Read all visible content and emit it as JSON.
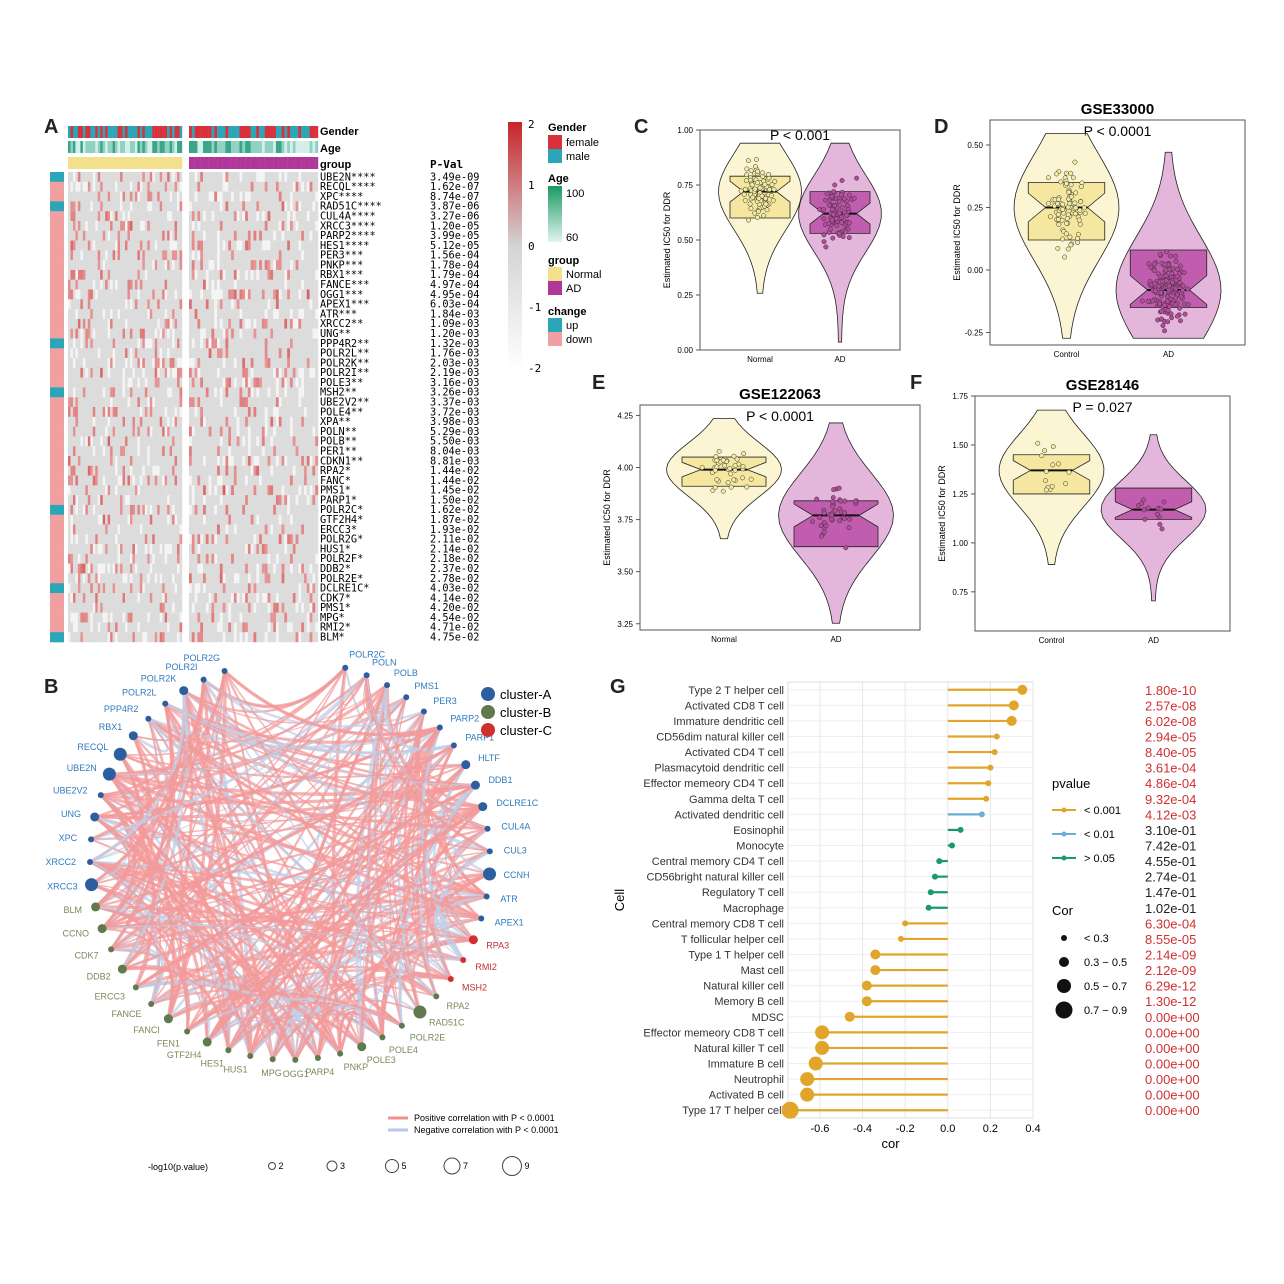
{
  "panels": {
    "A": "A",
    "B": "B",
    "C": "C",
    "D": "D",
    "E": "E",
    "F": "F",
    "G": "G"
  },
  "colors": {
    "normal": "#f2e08a",
    "ad": "#b0379a",
    "up": "#2aa6b8",
    "down": "#f0a0a0",
    "female": "#d9303a",
    "male": "#2aa6b8",
    "clusterA": "#2d5fa0",
    "clusterB": "#5f7a4e",
    "clusterC": "#d03030",
    "pval_lt001": "#e0a52a",
    "pval_lt01": "#6baed6",
    "pval_gt05": "#1a9870",
    "sig_text": "#d03030"
  },
  "heatmap": {
    "annotations": [
      "Gender",
      "Age",
      "group"
    ],
    "pval_header": "P-Val",
    "genes": [
      "UBE2N****",
      "RECQL****",
      "XPC****",
      "RAD51C****",
      "CUL4A****",
      "XRCC3****",
      "PARP2****",
      "HES1****",
      "PER3***",
      "PNKP***",
      "RBX1***",
      "FANCE***",
      "OGG1***",
      "APEX1***",
      "ATR***",
      "XRCC2**",
      "UNG**",
      "PPP4R2**",
      "POLR2L**",
      "POLR2K**",
      "POLR2I**",
      "POLE3**",
      "MSH2**",
      "UBE2V2**",
      "POLE4**",
      "XPA**",
      "POLN**",
      "POLB**",
      "PER1**",
      "CDKN1**",
      "RPA2*",
      "FANC*",
      "PMS1*",
      "PARP1*",
      "POLR2C*",
      "GTF2H4*",
      "ERCC3*",
      "POLR2G*",
      "HUS1*",
      "POLR2F*",
      "DDB2*",
      "POLR2E*",
      "DCLRE1C*",
      "CDK7*",
      "PMS1*",
      "MPG*",
      "RMI2*",
      "BLM*"
    ],
    "pvals": [
      "3.49e-09",
      "1.62e-07",
      "8.74e-07",
      "3.87e-06",
      "3.27e-06",
      "1.20e-05",
      "3.99e-05",
      "5.12e-05",
      "1.56e-04",
      "1.78e-04",
      "1.79e-04",
      "4.97e-04",
      "4.95e-04",
      "6.03e-04",
      "1.84e-03",
      "1.09e-03",
      "1.20e-03",
      "1.32e-03",
      "1.76e-03",
      "2.03e-03",
      "2.19e-03",
      "3.16e-03",
      "3.26e-03",
      "3.37e-03",
      "3.72e-03",
      "3.98e-03",
      "5.29e-03",
      "5.50e-03",
      "8.04e-03",
      "8.81e-03",
      "1.44e-02",
      "1.44e-02",
      "1.45e-02",
      "1.50e-02",
      "1.62e-02",
      "1.87e-02",
      "1.93e-02",
      "2.11e-02",
      "2.14e-02",
      "2.18e-02",
      "2.37e-02",
      "2.78e-02",
      "4.03e-02",
      "4.14e-02",
      "4.20e-02",
      "4.54e-02",
      "4.71e-02",
      "4.75e-02"
    ],
    "scale_ticks": [
      "2",
      "1",
      "0",
      "-1",
      "-2"
    ],
    "legend": {
      "gender_title": "Gender",
      "female": "female",
      "male": "male",
      "age_title": "Age",
      "age_hi": "100",
      "age_lo": "60",
      "group_title": "group",
      "normal": "Normal",
      "ad": "AD",
      "change_title": "change",
      "up": "up",
      "down": "down"
    }
  },
  "network": {
    "nodes": [
      {
        "n": "POLR2C",
        "c": "A"
      },
      {
        "n": "POLN",
        "c": "A"
      },
      {
        "n": "POLB",
        "c": "A"
      },
      {
        "n": "PMS1",
        "c": "A"
      },
      {
        "n": "PER3",
        "c": "A"
      },
      {
        "n": "PARP2",
        "c": "A"
      },
      {
        "n": "PARP1",
        "c": "A"
      },
      {
        "n": "HLTF",
        "c": "A"
      },
      {
        "n": "DDB1",
        "c": "A"
      },
      {
        "n": "DCLRE1C",
        "c": "A"
      },
      {
        "n": "CUL4A",
        "c": "A"
      },
      {
        "n": "CUL3",
        "c": "A"
      },
      {
        "n": "CCNH",
        "c": "A"
      },
      {
        "n": "ATR",
        "c": "A"
      },
      {
        "n": "APEX1",
        "c": "A"
      },
      {
        "n": "RPA3",
        "c": "C"
      },
      {
        "n": "RMI2",
        "c": "C"
      },
      {
        "n": "MSH2",
        "c": "C"
      },
      {
        "n": "RPA2",
        "c": "B"
      },
      {
        "n": "RAD51C",
        "c": "B"
      },
      {
        "n": "POLR2E",
        "c": "B"
      },
      {
        "n": "POLE4",
        "c": "B"
      },
      {
        "n": "POLE3",
        "c": "B"
      },
      {
        "n": "PNKP",
        "c": "B"
      },
      {
        "n": "PARP4",
        "c": "B"
      },
      {
        "n": "OGG1",
        "c": "B"
      },
      {
        "n": "MPG",
        "c": "B"
      },
      {
        "n": "HUS1",
        "c": "B"
      },
      {
        "n": "HES1",
        "c": "B"
      },
      {
        "n": "GTF2H4",
        "c": "B"
      },
      {
        "n": "FEN1",
        "c": "B"
      },
      {
        "n": "FANCI",
        "c": "B"
      },
      {
        "n": "FANCE",
        "c": "B"
      },
      {
        "n": "ERCC3",
        "c": "B"
      },
      {
        "n": "DDB2",
        "c": "B"
      },
      {
        "n": "CDK7",
        "c": "B"
      },
      {
        "n": "CCNO",
        "c": "B"
      },
      {
        "n": "BLM",
        "c": "B"
      },
      {
        "n": "XRCC3",
        "c": "A"
      },
      {
        "n": "XRCC2",
        "c": "A"
      },
      {
        "n": "XPC",
        "c": "A"
      },
      {
        "n": "UNG",
        "c": "A"
      },
      {
        "n": "UBE2V2",
        "c": "A"
      },
      {
        "n": "UBE2N",
        "c": "A"
      },
      {
        "n": "RECQL",
        "c": "A"
      },
      {
        "n": "RBX1",
        "c": "A"
      },
      {
        "n": "PPP4R2",
        "c": "A"
      },
      {
        "n": "POLR2L",
        "c": "A"
      },
      {
        "n": "POLR2K",
        "c": "A"
      },
      {
        "n": "POLR2I",
        "c": "A"
      },
      {
        "n": "POLR2G",
        "c": "A"
      }
    ],
    "legend_clusters": [
      "cluster-A",
      "cluster-B",
      "cluster-C"
    ],
    "positive": "Positive correlation with P < 0.0001",
    "negative": "Negative correlation with P < 0.0001",
    "size_title": "-log10(p.value)",
    "size_values": [
      "2",
      "3",
      "5",
      "7",
      "9"
    ]
  },
  "chart_data": [
    {
      "type": "violin",
      "panel": "C",
      "title": "",
      "pvalue": "P < 0.001",
      "ylabel": "Estimated IC50 for DDR",
      "categories": [
        "Normal",
        "AD"
      ],
      "ylim": [
        0,
        1.0
      ],
      "yticks": [
        "0.00",
        "0.25",
        "0.50",
        "0.75",
        "1.00"
      ],
      "medians": [
        0.72,
        0.62
      ],
      "q1": [
        0.6,
        0.53
      ],
      "q3": [
        0.79,
        0.72
      ]
    },
    {
      "type": "violin",
      "panel": "D",
      "title": "GSE33000",
      "pvalue": "P < 0.0001",
      "ylabel": "Estimated IC50 for DDR",
      "categories": [
        "Control",
        "AD"
      ],
      "ylim": [
        -0.3,
        0.6
      ],
      "yticks": [
        "-0.25",
        "0.00",
        "0.25",
        "0.50"
      ],
      "medians": [
        0.25,
        -0.08
      ],
      "q1": [
        0.12,
        -0.15
      ],
      "q3": [
        0.35,
        0.08
      ]
    },
    {
      "type": "violin",
      "panel": "E",
      "title": "GSE122063",
      "pvalue": "P < 0.0001",
      "ylabel": "Estimated IC50 for DDR",
      "categories": [
        "Normal",
        "AD"
      ],
      "ylim": [
        3.22,
        4.3
      ],
      "yticks": [
        "3.25",
        "3.50",
        "3.75",
        "4.00",
        "4.25"
      ],
      "medians": [
        3.99,
        3.77
      ],
      "q1": [
        3.91,
        3.62
      ],
      "q3": [
        4.05,
        3.84
      ]
    },
    {
      "type": "violin",
      "panel": "F",
      "title": "GSE28146",
      "pvalue": "P = 0.027",
      "ylabel": "Estimated IC50 for DDR",
      "categories": [
        "Control",
        "AD"
      ],
      "ylim": [
        0.55,
        1.75
      ],
      "yticks": [
        "0.75",
        "1.00",
        "1.25",
        "1.50",
        "1.75"
      ],
      "medians": [
        1.37,
        1.17
      ],
      "q1": [
        1.25,
        1.12
      ],
      "q3": [
        1.45,
        1.28
      ]
    },
    {
      "type": "lollipop",
      "panel": "G",
      "xlabel": "cor",
      "ylabel": "Cell",
      "xlim": [
        -0.75,
        0.4
      ],
      "xticks": [
        "-0.6",
        "-0.4",
        "-0.2",
        "0.0",
        "0.2",
        "0.4"
      ],
      "cells": [
        "Type 2 T helper cell",
        "Activated CD8 T cell",
        "Immature dendritic cell",
        "CD56dim natural killer cell",
        "Activated CD4 T cell",
        "Plasmacytoid dendritic cell",
        "Effector memeory CD4 T cell",
        "Gamma delta T cell",
        "Activated dendritic cell",
        "Eosinophil",
        "Monocyte",
        "Central memory CD4 T cell",
        "CD56bright natural killer cell",
        "Regulatory T cell",
        "Macrophage",
        "Central memory CD8 T cell",
        "T follicular helper cell",
        "Type 1 T helper cell",
        "Mast cell",
        "Natural killer cell",
        "Memory B cell",
        "MDSC",
        "Effector memeory CD8 T cell",
        "Natural killer T cell",
        "Immature  B cell",
        "Neutrophil",
        "Activated B cell",
        "Type 17 T helper cell"
      ],
      "cor": [
        0.35,
        0.31,
        0.3,
        0.23,
        0.22,
        0.2,
        0.19,
        0.18,
        0.16,
        0.06,
        0.02,
        -0.04,
        -0.06,
        -0.08,
        -0.09,
        -0.2,
        -0.22,
        -0.34,
        -0.34,
        -0.38,
        -0.38,
        -0.46,
        -0.59,
        -0.59,
        -0.62,
        -0.66,
        -0.66,
        -0.74
      ],
      "pvalue": [
        "1.80e-10",
        "2.57e-08",
        "6.02e-08",
        "2.94e-05",
        "8.40e-05",
        "3.61e-04",
        "4.86e-04",
        "9.32e-04",
        "4.12e-03",
        "3.10e-01",
        "7.42e-01",
        "4.55e-01",
        "2.74e-01",
        "1.47e-01",
        "1.02e-01",
        "6.30e-04",
        "8.55e-05",
        "2.14e-09",
        "2.12e-09",
        "6.29e-12",
        "1.30e-12",
        "0.00e+00",
        "0.00e+00",
        "0.00e+00",
        "0.00e+00",
        "0.00e+00",
        "0.00e+00",
        "0.00e+00"
      ],
      "pclass": [
        "a",
        "a",
        "a",
        "a",
        "a",
        "a",
        "a",
        "a",
        "b",
        "c",
        "c",
        "c",
        "c",
        "c",
        "c",
        "a",
        "a",
        "a",
        "a",
        "a",
        "a",
        "a",
        "a",
        "a",
        "a",
        "a",
        "a",
        "a"
      ],
      "legend_pvalue_title": "pvalue",
      "legend_pvalue": [
        "< 0.001",
        "< 0.01",
        "> 0.05"
      ],
      "legend_cor_title": "Cor",
      "legend_cor": [
        "< 0.3",
        "0.3 − 0.5",
        "0.5 − 0.7",
        "0.7 − 0.9"
      ]
    }
  ]
}
